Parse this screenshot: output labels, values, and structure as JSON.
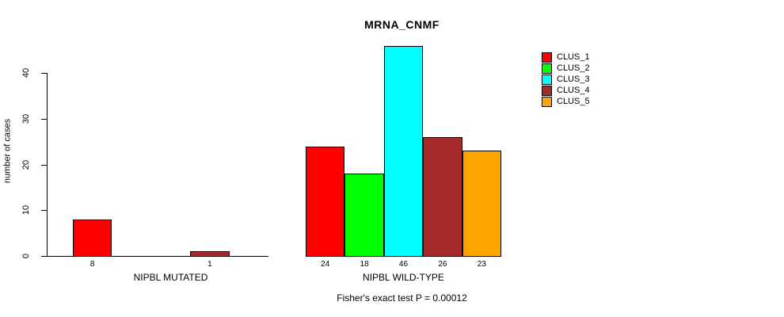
{
  "chart_data": {
    "type": "bar",
    "title": "MRNA_CNMF",
    "subtitle": "Fisher's exact test P = 0.00012",
    "ylabel": "number of cases",
    "ylim": [
      0,
      46
    ],
    "yticks": [
      0,
      10,
      20,
      30,
      40
    ],
    "grid": false,
    "legend_position": "right",
    "categories": [
      "NIPBL MUTATED",
      "NIPBL WILD-TYPE"
    ],
    "series": [
      {
        "name": "CLUS_1",
        "color": "#ff0000",
        "values": [
          8,
          24
        ]
      },
      {
        "name": "CLUS_2",
        "color": "#00ff00",
        "values": [
          0,
          18
        ]
      },
      {
        "name": "CLUS_3",
        "color": "#00ffff",
        "values": [
          0,
          46
        ]
      },
      {
        "name": "CLUS_4",
        "color": "#a52a2a",
        "values": [
          1,
          26
        ]
      },
      {
        "name": "CLUS_5",
        "color": "#ffa500",
        "values": [
          0,
          23
        ]
      }
    ],
    "bar_value_labels": {
      "shown": true,
      "hidden_when_zero": true
    }
  }
}
